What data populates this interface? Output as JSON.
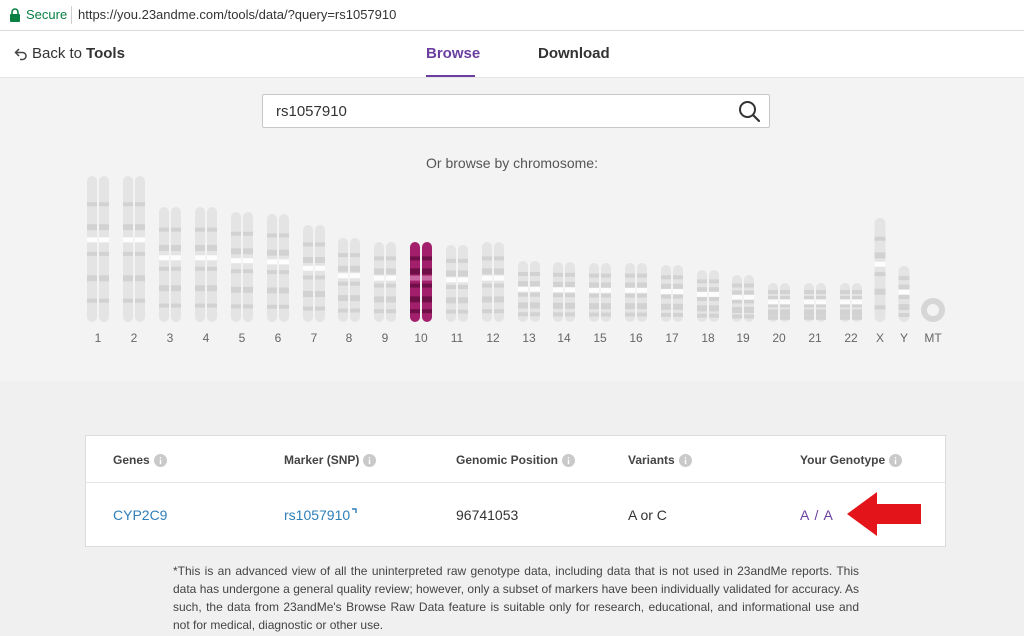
{
  "browser": {
    "secure_label": "Secure",
    "url": "https://you.23andme.com/tools/data/?query=rs1057910"
  },
  "nav": {
    "back_prefix": "Back to",
    "back_bold": "Tools",
    "tabs": [
      {
        "label": "Browse",
        "active": true
      },
      {
        "label": "Download",
        "active": false
      }
    ]
  },
  "search": {
    "value": "rs1057910",
    "placeholder": ""
  },
  "browse_label": "Or browse by chromosome:",
  "chromosomes": {
    "selected": "10",
    "selected_color": "#a21f6b",
    "items": [
      "1",
      "2",
      "3",
      "4",
      "5",
      "6",
      "7",
      "8",
      "9",
      "10",
      "11",
      "12",
      "13",
      "14",
      "15",
      "16",
      "17",
      "18",
      "19",
      "20",
      "21",
      "22",
      "X",
      "Y",
      "MT"
    ]
  },
  "results": {
    "headers": [
      "Genes",
      "Marker (SNP)",
      "Genomic Position",
      "Variants",
      "Your Genotype"
    ],
    "row": {
      "gene": "CYP2C9",
      "marker": "rs1057910",
      "position": "96741053",
      "variants": "A or C",
      "genotype": "A / A"
    }
  },
  "annotation_arrow_color": "#e3151b",
  "footnote": "*This is an advanced view of all the uninterpreted raw genotype data, including data that is not used in 23andMe reports. This data has undergone a general quality review; however, only a subset of markers have been individually validated for accuracy. As such, the data from 23andMe's Browse Raw Data feature is suitable only for research, educational, and informational use and not for medical, diagnostic or other use."
}
